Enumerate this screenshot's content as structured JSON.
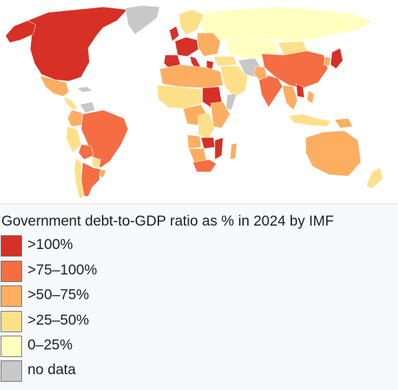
{
  "legend": {
    "title": "Government debt-to-GDP ratio as % in 2024 by IMF",
    "items": [
      {
        "label": ">100%",
        "color": "#d73027"
      },
      {
        "label": ">75–100%",
        "color": "#f46d43"
      },
      {
        "label": ">50–75%",
        "color": "#fdae61"
      },
      {
        "label": ">25–50%",
        "color": "#fee08b"
      },
      {
        "label": "0–25%",
        "color": "#ffffbf"
      },
      {
        "label": "no data",
        "color": "#c8c8c8"
      }
    ]
  },
  "map": {
    "regions": [
      {
        "name": "canada-usa",
        "category": ">100%"
      },
      {
        "name": "alaska",
        "category": ">100%"
      },
      {
        "name": "greenland",
        "category": "no data"
      },
      {
        "name": "mexico",
        "category": ">50–75%"
      },
      {
        "name": "central-america",
        "category": ">25–50%"
      },
      {
        "name": "cuba",
        "category": "no data"
      },
      {
        "name": "venezuela",
        "category": "no data"
      },
      {
        "name": "colombia",
        "category": ">50–75%"
      },
      {
        "name": "brazil",
        "category": ">75–100%"
      },
      {
        "name": "peru",
        "category": ">25–50%"
      },
      {
        "name": "bolivia",
        "category": ">75–100%"
      },
      {
        "name": "paraguay",
        "category": ">25–50%"
      },
      {
        "name": "argentina",
        "category": ">75–100%"
      },
      {
        "name": "chile",
        "category": ">25–50%"
      },
      {
        "name": "uruguay",
        "category": ">50–75%"
      },
      {
        "name": "russia",
        "category": "0–25%"
      },
      {
        "name": "nordics",
        "category": ">25–50%"
      },
      {
        "name": "uk",
        "category": ">100%"
      },
      {
        "name": "western-europe",
        "category": ">100%"
      },
      {
        "name": "central-europe",
        "category": ">50–75%"
      },
      {
        "name": "italy",
        "category": ">100%"
      },
      {
        "name": "greece",
        "category": ">100%"
      },
      {
        "name": "iberia",
        "category": ">100%"
      },
      {
        "name": "turkey",
        "category": ">25–50%"
      },
      {
        "name": "middle-east",
        "category": ">25–50%"
      },
      {
        "name": "iran",
        "category": "no data"
      },
      {
        "name": "kazakhstan-central-asia",
        "category": "0–25%"
      },
      {
        "name": "mongolia",
        "category": ">25–50%"
      },
      {
        "name": "china",
        "category": ">75–100%"
      },
      {
        "name": "india",
        "category": ">75–100%"
      },
      {
        "name": "pakistan",
        "category": ">50–75%"
      },
      {
        "name": "japan",
        "category": ">100%"
      },
      {
        "name": "korea",
        "category": ">50–75%"
      },
      {
        "name": "southeast-asia",
        "category": ">50–75%"
      },
      {
        "name": "laos",
        "category": ">100%"
      },
      {
        "name": "indonesia",
        "category": ">25–50%"
      },
      {
        "name": "philippines",
        "category": ">50–75%"
      },
      {
        "name": "papua-new-guinea",
        "category": ">50–75%"
      },
      {
        "name": "australia",
        "category": ">50–75%"
      },
      {
        "name": "new-zealand",
        "category": ">25–50%"
      },
      {
        "name": "north-africa",
        "category": ">50–75%"
      },
      {
        "name": "sudan",
        "category": ">100%"
      },
      {
        "name": "west-africa",
        "category": ">25–50%"
      },
      {
        "name": "central-africa",
        "category": ">50–75%"
      },
      {
        "name": "drc",
        "category": ">25–50%"
      },
      {
        "name": "east-africa",
        "category": ">50–75%"
      },
      {
        "name": "somalia",
        "category": "no data"
      },
      {
        "name": "angola",
        "category": ">50–75%"
      },
      {
        "name": "zambia",
        "category": ">100%"
      },
      {
        "name": "mozambique",
        "category": ">100%"
      },
      {
        "name": "namibia-botswana",
        "category": ">50–75%"
      },
      {
        "name": "south-africa",
        "category": ">75–100%"
      },
      {
        "name": "madagascar",
        "category": ">50–75%"
      }
    ]
  }
}
